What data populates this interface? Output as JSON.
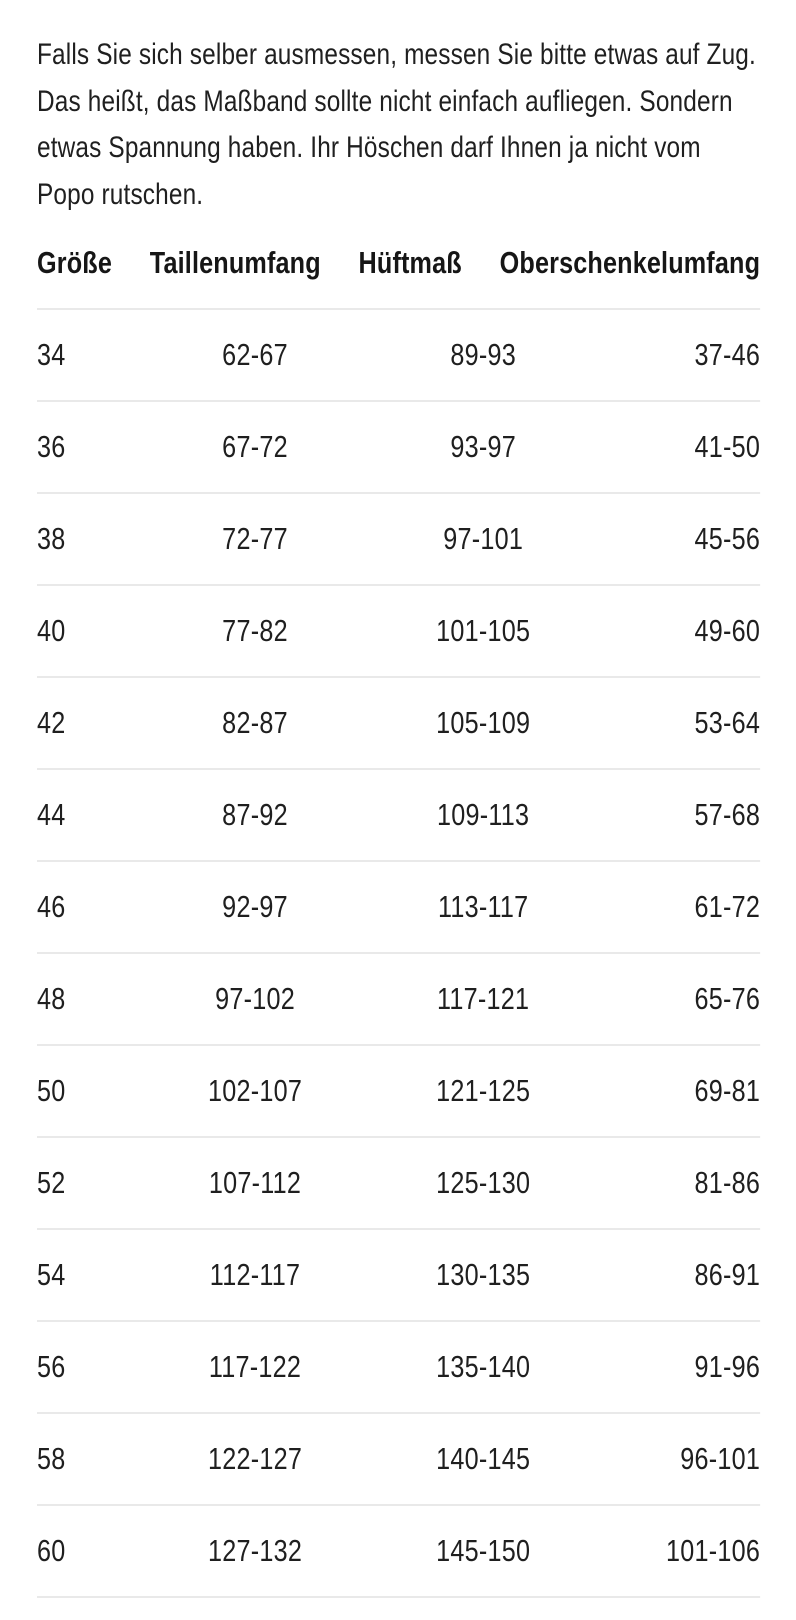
{
  "intro": {
    "text": "Falls Sie sich selber ausmessen, messen Sie bitte etwas auf Zug. Das heißt, das Maßband sollte nicht einfach aufliegen. Sondern etwas Spannung haben. Ihr Höschen darf Ihnen ja nicht vom Popo rutschen."
  },
  "table": {
    "columns": [
      "Größe",
      "Taillenumfang",
      "Hüftmaß",
      "Oberschenkelumfang"
    ],
    "rows": [
      [
        "34",
        "62-67",
        "89-93",
        "37-46"
      ],
      [
        "36",
        "67-72",
        "93-97",
        "41-50"
      ],
      [
        "38",
        "72-77",
        "97-101",
        "45-56"
      ],
      [
        "40",
        "77-82",
        "101-105",
        "49-60"
      ],
      [
        "42",
        "82-87",
        "105-109",
        "53-64"
      ],
      [
        "44",
        "87-92",
        "109-113",
        "57-68"
      ],
      [
        "46",
        "92-97",
        "113-117",
        "61-72"
      ],
      [
        "48",
        "97-102",
        "117-121",
        "65-76"
      ],
      [
        "50",
        "102-107",
        "121-125",
        "69-81"
      ],
      [
        "52",
        "107-112",
        "125-130",
        "81-86"
      ],
      [
        "54",
        "112-117",
        "130-135",
        "86-91"
      ],
      [
        "56",
        "117-122",
        "135-140",
        "91-96"
      ],
      [
        "58",
        "122-127",
        "140-145",
        "96-101"
      ],
      [
        "60",
        "127-132",
        "145-150",
        "101-106"
      ]
    ]
  },
  "colors": {
    "text": "#1f1f1f",
    "heading": "#161616",
    "divider": "#e9e9e9",
    "background": "#ffffff"
  }
}
